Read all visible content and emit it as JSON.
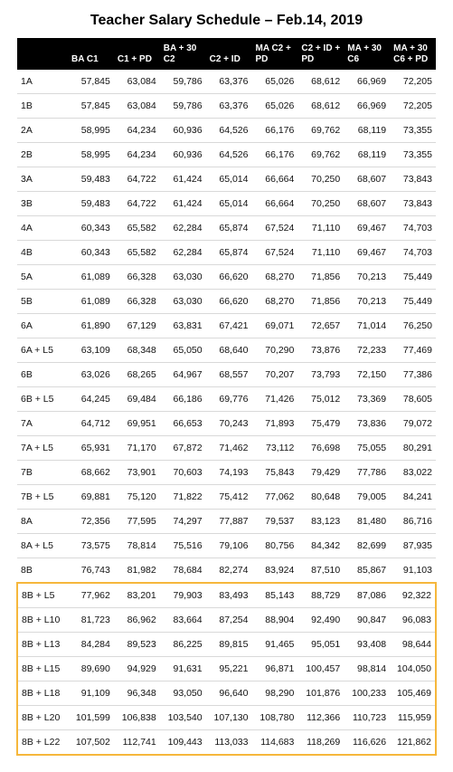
{
  "title": "Teacher Salary Schedule – Feb.14, 2019",
  "table": {
    "columns": [
      "",
      "BA C1",
      "C1 + PD",
      "BA + 30 C2",
      "C2 + ID",
      "MA C2 + PD",
      "C2 + ID + PD",
      "MA + 30 C6",
      "MA + 30 C6 + PD"
    ],
    "rows": [
      {
        "step": "1A",
        "v": [
          "57,845",
          "63,084",
          "59,786",
          "63,376",
          "65,026",
          "68,612",
          "66,969",
          "72,205"
        ],
        "hl": false
      },
      {
        "step": "1B",
        "v": [
          "57,845",
          "63,084",
          "59,786",
          "63,376",
          "65,026",
          "68,612",
          "66,969",
          "72,205"
        ],
        "hl": false
      },
      {
        "step": "2A",
        "v": [
          "58,995",
          "64,234",
          "60,936",
          "64,526",
          "66,176",
          "69,762",
          "68,119",
          "73,355"
        ],
        "hl": false
      },
      {
        "step": "2B",
        "v": [
          "58,995",
          "64,234",
          "60,936",
          "64,526",
          "66,176",
          "69,762",
          "68,119",
          "73,355"
        ],
        "hl": false
      },
      {
        "step": "3A",
        "v": [
          "59,483",
          "64,722",
          "61,424",
          "65,014",
          "66,664",
          "70,250",
          "68,607",
          "73,843"
        ],
        "hl": false
      },
      {
        "step": "3B",
        "v": [
          "59,483",
          "64,722",
          "61,424",
          "65,014",
          "66,664",
          "70,250",
          "68,607",
          "73,843"
        ],
        "hl": false
      },
      {
        "step": "4A",
        "v": [
          "60,343",
          "65,582",
          "62,284",
          "65,874",
          "67,524",
          "71,110",
          "69,467",
          "74,703"
        ],
        "hl": false
      },
      {
        "step": "4B",
        "v": [
          "60,343",
          "65,582",
          "62,284",
          "65,874",
          "67,524",
          "71,110",
          "69,467",
          "74,703"
        ],
        "hl": false
      },
      {
        "step": "5A",
        "v": [
          "61,089",
          "66,328",
          "63,030",
          "66,620",
          "68,270",
          "71,856",
          "70,213",
          "75,449"
        ],
        "hl": false
      },
      {
        "step": "5B",
        "v": [
          "61,089",
          "66,328",
          "63,030",
          "66,620",
          "68,270",
          "71,856",
          "70,213",
          "75,449"
        ],
        "hl": false
      },
      {
        "step": "6A",
        "v": [
          "61,890",
          "67,129",
          "63,831",
          "67,421",
          "69,071",
          "72,657",
          "71,014",
          "76,250"
        ],
        "hl": false
      },
      {
        "step": "6A + L5",
        "v": [
          "63,109",
          "68,348",
          "65,050",
          "68,640",
          "70,290",
          "73,876",
          "72,233",
          "77,469"
        ],
        "hl": false
      },
      {
        "step": "6B",
        "v": [
          "63,026",
          "68,265",
          "64,967",
          "68,557",
          "70,207",
          "73,793",
          "72,150",
          "77,386"
        ],
        "hl": false
      },
      {
        "step": "6B + L5",
        "v": [
          "64,245",
          "69,484",
          "66,186",
          "69,776",
          "71,426",
          "75,012",
          "73,369",
          "78,605"
        ],
        "hl": false
      },
      {
        "step": "7A",
        "v": [
          "64,712",
          "69,951",
          "66,653",
          "70,243",
          "71,893",
          "75,479",
          "73,836",
          "79,072"
        ],
        "hl": false
      },
      {
        "step": "7A + L5",
        "v": [
          "65,931",
          "71,170",
          "67,872",
          "71,462",
          "73,112",
          "76,698",
          "75,055",
          "80,291"
        ],
        "hl": false
      },
      {
        "step": "7B",
        "v": [
          "68,662",
          "73,901",
          "70,603",
          "74,193",
          "75,843",
          "79,429",
          "77,786",
          "83,022"
        ],
        "hl": false
      },
      {
        "step": "7B + L5",
        "v": [
          "69,881",
          "75,120",
          "71,822",
          "75,412",
          "77,062",
          "80,648",
          "79,005",
          "84,241"
        ],
        "hl": false
      },
      {
        "step": "8A",
        "v": [
          "72,356",
          "77,595",
          "74,297",
          "77,887",
          "79,537",
          "83,123",
          "81,480",
          "86,716"
        ],
        "hl": false
      },
      {
        "step": "8A + L5",
        "v": [
          "73,575",
          "78,814",
          "75,516",
          "79,106",
          "80,756",
          "84,342",
          "82,699",
          "87,935"
        ],
        "hl": false
      },
      {
        "step": "8B",
        "v": [
          "76,743",
          "81,982",
          "78,684",
          "82,274",
          "83,924",
          "87,510",
          "85,867",
          "91,103"
        ],
        "hl": false
      },
      {
        "step": "8B + L5",
        "v": [
          "77,962",
          "83,201",
          "79,903",
          "83,493",
          "85,143",
          "88,729",
          "87,086",
          "92,322"
        ],
        "hl": true
      },
      {
        "step": "8B + L10",
        "v": [
          "81,723",
          "86,962",
          "83,664",
          "87,254",
          "88,904",
          "92,490",
          "90,847",
          "96,083"
        ],
        "hl": true
      },
      {
        "step": "8B + L13",
        "v": [
          "84,284",
          "89,523",
          "86,225",
          "89,815",
          "91,465",
          "95,051",
          "93,408",
          "98,644"
        ],
        "hl": true
      },
      {
        "step": "8B + L15",
        "v": [
          "89,690",
          "94,929",
          "91,631",
          "95,221",
          "96,871",
          "100,457",
          "98,814",
          "104,050"
        ],
        "hl": true
      },
      {
        "step": "8B + L18",
        "v": [
          "91,109",
          "96,348",
          "93,050",
          "96,640",
          "98,290",
          "101,876",
          "100,233",
          "105,469"
        ],
        "hl": true
      },
      {
        "step": "8B + L20",
        "v": [
          "101,599",
          "106,838",
          "103,540",
          "107,130",
          "108,780",
          "112,366",
          "110,723",
          "115,959"
        ],
        "hl": true
      },
      {
        "step": "8B + L22",
        "v": [
          "107,502",
          "112,741",
          "109,443",
          "113,033",
          "114,683",
          "118,269",
          "116,626",
          "121,862"
        ],
        "hl": true
      }
    ],
    "highlight_color": "#f6b73c",
    "header_bg": "#000000",
    "header_fg": "#ffffff",
    "row_border": "#d9d9d9",
    "font_family": "Arial",
    "title_fontsize": 16,
    "body_fontsize": 10.5,
    "header_fontsize": 10
  }
}
